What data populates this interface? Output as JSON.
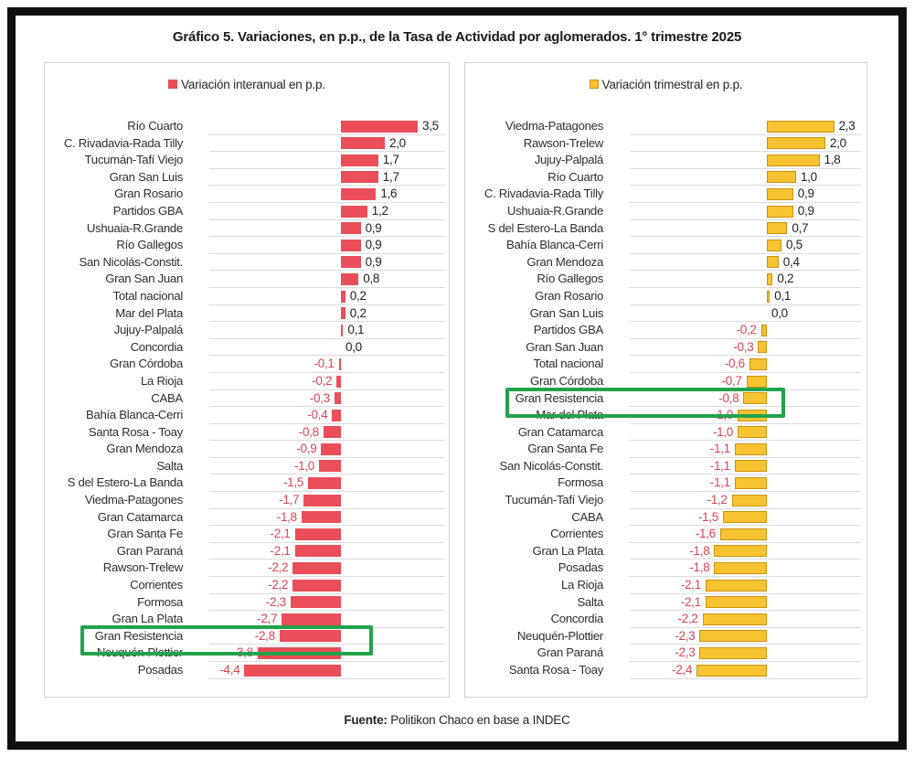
{
  "title": "Gráfico 5. Variaciones, en p.p., de la Tasa de Actividad por aglomerados. 1° trimestre 2025",
  "footer": {
    "label": "Fuente:",
    "text": " Politikon Chaco en base a INDEC"
  },
  "colors": {
    "interanual_bar": "#ea4e59",
    "trimestral_bar_fill": "#f7c331",
    "trimestral_bar_border": "#c9930f",
    "negative_value_text": "#e04451",
    "positive_value_text": "#1f1f1f",
    "highlight_box": "#22a24b",
    "gridline": "#dcdcdc",
    "panel_border": "#d4d0d0",
    "frame": "#101010"
  },
  "chart_data": [
    {
      "type": "bar",
      "orientation": "horizontal",
      "legend": "Variación interanual en p.p.",
      "legend_position": "top-center",
      "legend_swatch": "red-square-icon",
      "value_format": "comma-decimal, 1 fraction digit",
      "xlim": [
        -4.4,
        3.5
      ],
      "grid": "horizontal row separators",
      "highlight_row": "Gran Resistencia",
      "categories": [
        "Río Cuarto",
        "C. Rivadavia-Rada Tilly",
        "Tucumán-Tafí Viejo",
        "Gran San Luis",
        "Gran Rosario",
        "Partidos GBA",
        "Ushuaia-R.Grande",
        "Río Gallegos",
        "San Nicolás-Constit.",
        "Gran San Juan",
        "Total nacional",
        "Mar del Plata",
        "Jujuy-Palpalá",
        "Concordia",
        "Gran Córdoba",
        "La Rioja",
        "CABA",
        "Bahía Blanca-Cerri",
        "Santa Rosa - Toay",
        "Gran Mendoza",
        "Salta",
        "S del Estero-La Banda",
        "Viedma-Patagones",
        "Gran Catamarca",
        "Gran Santa Fe",
        "Gran Paraná",
        "Rawson-Trelew",
        "Corrientes",
        "Formosa",
        "Gran La Plata",
        "Gran Resistencia",
        "Neuquén-Plottier",
        "Posadas"
      ],
      "values": [
        3.5,
        2.0,
        1.7,
        1.7,
        1.6,
        1.2,
        0.9,
        0.9,
        0.9,
        0.8,
        0.2,
        0.2,
        0.1,
        0.0,
        -0.1,
        -0.2,
        -0.3,
        -0.4,
        -0.8,
        -0.9,
        -1.0,
        -1.5,
        -1.7,
        -1.8,
        -2.1,
        -2.1,
        -2.2,
        -2.2,
        -2.3,
        -2.7,
        -2.8,
        -3.8,
        -4.4
      ]
    },
    {
      "type": "bar",
      "orientation": "horizontal",
      "legend": "Variación trimestral en p.p.",
      "legend_position": "top-center",
      "legend_swatch": "yellow-square-icon",
      "value_format": "comma-decimal, 1 fraction digit",
      "xlim": [
        -2.4,
        2.3
      ],
      "grid": "horizontal row separators",
      "highlight_row": "Gran Resistencia",
      "categories": [
        "Viedma-Patagones",
        "Rawson-Trelew",
        "Jujuy-Palpalá",
        "Río Cuarto",
        "C. Rivadavia-Rada Tilly",
        "Ushuaia-R.Grande",
        "S del Estero-La Banda",
        "Bahía Blanca-Cerri",
        "Gran Mendoza",
        "Río Gallegos",
        "Gran Rosario",
        "Gran San Luis",
        "Partidos GBA",
        "Gran San Juan",
        "Total nacional",
        "Gran Córdoba",
        "Gran Resistencia",
        "Mar del Plata",
        "Gran Catamarca",
        "Gran Santa Fe",
        "San Nicolás-Constit.",
        "Formosa",
        "Tucumán-Tafí Viejo",
        "CABA",
        "Corrientes",
        "Gran La Plata",
        "Posadas",
        "La Rioja",
        "Salta",
        "Concordia",
        "Neuquén-Plottier",
        "Gran Paraná",
        "Santa Rosa - Toay"
      ],
      "values": [
        2.3,
        2.0,
        1.8,
        1.0,
        0.9,
        0.9,
        0.7,
        0.5,
        0.4,
        0.2,
        0.1,
        0.0,
        -0.2,
        -0.3,
        -0.6,
        -0.7,
        -0.8,
        -1.0,
        -1.0,
        -1.1,
        -1.1,
        -1.1,
        -1.2,
        -1.5,
        -1.6,
        -1.8,
        -1.8,
        -2.1,
        -2.1,
        -2.2,
        -2.3,
        -2.3,
        -2.4
      ]
    }
  ]
}
